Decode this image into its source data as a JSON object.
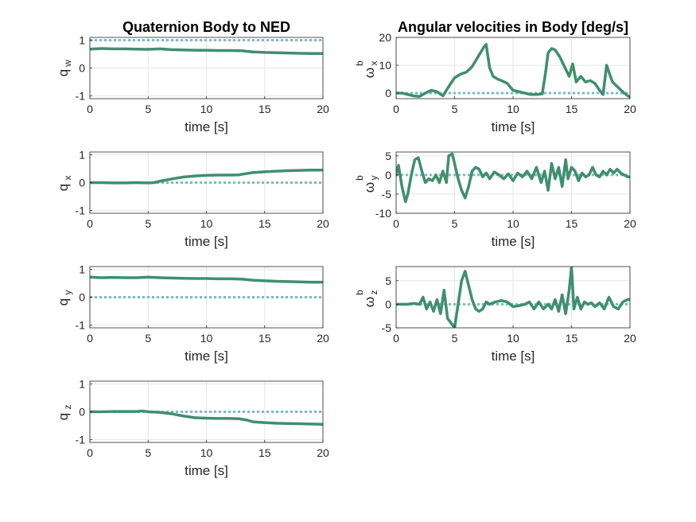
{
  "colors": {
    "data": "#3f8f6e",
    "reference": "#7bbcc4"
  },
  "chart_data": [
    {
      "type": "line",
      "title": "Quaternion Body to NED",
      "xlabel": "time [s]",
      "ylabel": "q",
      "ylabel_sub": "w",
      "xlim": [
        0,
        20
      ],
      "ylim": [
        -1.1,
        1.1
      ],
      "xticks": [
        0,
        5,
        10,
        15,
        20
      ],
      "yticks": [
        -1,
        0,
        1
      ],
      "grid": true,
      "series": [
        {
          "role": "reference",
          "x": [
            0,
            20
          ],
          "y": [
            1,
            1
          ]
        },
        {
          "role": "estimate",
          "x": [
            0,
            1,
            2,
            3,
            4,
            5,
            6,
            7,
            8,
            9,
            10,
            11,
            12,
            13,
            14,
            15,
            16,
            17,
            18,
            19,
            20
          ],
          "y": [
            0.68,
            0.7,
            0.69,
            0.69,
            0.68,
            0.67,
            0.69,
            0.66,
            0.65,
            0.64,
            0.64,
            0.63,
            0.63,
            0.62,
            0.58,
            0.56,
            0.55,
            0.54,
            0.53,
            0.52,
            0.52
          ]
        }
      ]
    },
    {
      "type": "line",
      "title": "Angular velocities in Body [deg/s]",
      "xlabel": "time [s]",
      "ylabel": "ω",
      "ylabel_sup": "b",
      "ylabel_sub": "x",
      "xlim": [
        0,
        20
      ],
      "ylim": [
        -2,
        20
      ],
      "xticks": [
        0,
        5,
        10,
        15,
        20
      ],
      "yticks": [
        0,
        10,
        20
      ],
      "grid": true,
      "series": [
        {
          "role": "reference",
          "x": [
            0,
            20
          ],
          "y": [
            0,
            0
          ]
        },
        {
          "role": "estimate",
          "x": [
            0,
            0.5,
            1,
            1.5,
            2,
            2.5,
            3,
            3.5,
            4,
            4.3,
            4.6,
            5,
            5.5,
            6,
            6.5,
            7,
            7.5,
            7.7,
            8,
            8.3,
            8.7,
            9,
            9.5,
            10,
            10.5,
            11,
            11.5,
            12,
            12.5,
            12.8,
            13,
            13.3,
            13.6,
            14,
            14.4,
            14.8,
            15.1,
            15.4,
            15.8,
            16.2,
            16.6,
            17,
            17.4,
            17.7,
            18,
            18.5,
            19,
            19.5,
            20
          ],
          "y": [
            0,
            0,
            -0.5,
            -1,
            -1.2,
            0,
            1,
            0.5,
            -1,
            1,
            3,
            5.5,
            6.8,
            7.5,
            9.5,
            13,
            16.5,
            17.5,
            9,
            6,
            5,
            4.5,
            3.5,
            1,
            0.5,
            0,
            -0.5,
            -0.5,
            -0.3,
            8,
            14.5,
            16,
            15.5,
            13,
            9.5,
            6,
            10.5,
            4,
            6,
            4,
            4.5,
            3.5,
            1,
            -0.5,
            10,
            4,
            2,
            0,
            -1.5
          ]
        }
      ]
    },
    {
      "type": "line",
      "title": "",
      "xlabel": "time [s]",
      "ylabel": "q",
      "ylabel_sub": "x",
      "xlim": [
        0,
        20
      ],
      "ylim": [
        -1.1,
        1.1
      ],
      "xticks": [
        0,
        5,
        10,
        15,
        20
      ],
      "yticks": [
        -1,
        0,
        1
      ],
      "grid": true,
      "series": [
        {
          "role": "reference",
          "x": [
            0,
            20
          ],
          "y": [
            0,
            0
          ]
        },
        {
          "role": "estimate",
          "x": [
            0,
            1,
            2,
            3,
            4,
            5,
            5.5,
            6,
            7,
            8,
            9,
            10,
            11,
            12,
            12.8,
            13.5,
            14,
            15,
            16,
            17,
            18,
            19,
            20
          ],
          "y": [
            0,
            0,
            -0.01,
            -0.01,
            0,
            -0.01,
            0,
            0.05,
            0.13,
            0.2,
            0.24,
            0.26,
            0.27,
            0.27,
            0.28,
            0.33,
            0.36,
            0.39,
            0.41,
            0.43,
            0.44,
            0.45,
            0.45
          ]
        }
      ]
    },
    {
      "type": "line",
      "title": "",
      "xlabel": "time [s]",
      "ylabel": "ω",
      "ylabel_sup": "b",
      "ylabel_sub": "y",
      "xlim": [
        0,
        20
      ],
      "ylim": [
        -10,
        6
      ],
      "xticks": [
        0,
        5,
        10,
        15,
        20
      ],
      "yticks": [
        -10,
        -5,
        0,
        5
      ],
      "grid": true,
      "series": [
        {
          "role": "reference",
          "x": [
            0,
            20
          ],
          "y": [
            0,
            0
          ]
        },
        {
          "role": "estimate",
          "x": [
            0,
            0.2,
            0.5,
            0.8,
            1,
            1.3,
            1.6,
            1.9,
            2.2,
            2.5,
            2.8,
            3.1,
            3.4,
            3.7,
            4,
            4.3,
            4.5,
            4.8,
            5,
            5.3,
            5.6,
            5.9,
            6.2,
            6.5,
            6.8,
            7.1,
            7.4,
            7.7,
            8,
            8.4,
            8.8,
            9.2,
            9.6,
            10,
            10.4,
            10.8,
            11.2,
            11.6,
            12,
            12.4,
            12.7,
            13,
            13.3,
            13.6,
            13.9,
            14.2,
            14.5,
            14.7,
            15,
            15.3,
            15.6,
            15.9,
            16.2,
            16.5,
            16.8,
            17.1,
            17.4,
            17.7,
            18,
            18.3,
            18.6,
            18.9,
            19.2,
            19.5,
            19.8,
            20
          ],
          "y": [
            0,
            2.5,
            -3,
            -7,
            -5,
            0,
            4,
            4.5,
            1,
            -2,
            -1,
            -1.5,
            0,
            -2,
            1,
            -2,
            5,
            5.5,
            3,
            -1,
            -4,
            -6,
            -3,
            1,
            2,
            1.5,
            -0.5,
            0.5,
            -1,
            0.8,
            0,
            -1,
            0.3,
            -1.5,
            0.5,
            -0.5,
            1,
            -1,
            2,
            -2,
            1,
            -4,
            3,
            -1,
            2,
            -3,
            4,
            -1,
            2,
            1,
            -1.5,
            0.5,
            -0.5,
            0,
            2,
            0,
            -0.5,
            1,
            0,
            1.5,
            0.5,
            1.5,
            0.5,
            0,
            -0.5,
            -0.5
          ]
        }
      ]
    },
    {
      "type": "line",
      "title": "",
      "xlabel": "time [s]",
      "ylabel": "q",
      "ylabel_sub": "y",
      "xlim": [
        0,
        20
      ],
      "ylim": [
        -1.1,
        1.1
      ],
      "xticks": [
        0,
        5,
        10,
        15,
        20
      ],
      "yticks": [
        -1,
        0,
        1
      ],
      "grid": true,
      "series": [
        {
          "role": "reference",
          "x": [
            0,
            20
          ],
          "y": [
            0,
            0
          ]
        },
        {
          "role": "estimate",
          "x": [
            0,
            1,
            2,
            3,
            4,
            5,
            6,
            7,
            8,
            9,
            10,
            11,
            12,
            13,
            14,
            15,
            16,
            17,
            18,
            19,
            20
          ],
          "y": [
            0.72,
            0.7,
            0.71,
            0.7,
            0.7,
            0.72,
            0.7,
            0.69,
            0.68,
            0.67,
            0.67,
            0.66,
            0.66,
            0.65,
            0.61,
            0.59,
            0.57,
            0.56,
            0.55,
            0.54,
            0.54
          ]
        }
      ]
    },
    {
      "type": "line",
      "title": "",
      "xlabel": "time [s]",
      "ylabel": "ω",
      "ylabel_sup": "b",
      "ylabel_sub": "z",
      "xlim": [
        0,
        20
      ],
      "ylim": [
        -5,
        8
      ],
      "xticks": [
        0,
        5,
        10,
        15,
        20
      ],
      "yticks": [
        -5,
        0,
        5
      ],
      "grid": true,
      "series": [
        {
          "role": "reference",
          "x": [
            0,
            20
          ],
          "y": [
            0,
            0
          ]
        },
        {
          "role": "estimate",
          "x": [
            0,
            0.5,
            1,
            1.5,
            2,
            2.3,
            2.6,
            2.9,
            3.2,
            3.5,
            3.8,
            4.1,
            4.4,
            4.7,
            5,
            5.3,
            5.6,
            5.9,
            6.2,
            6.5,
            6.8,
            7.1,
            7.4,
            7.7,
            8,
            8.5,
            9,
            9.5,
            10,
            10.5,
            11,
            11.4,
            11.8,
            12.2,
            12.6,
            13,
            13.3,
            13.6,
            13.9,
            14.2,
            14.5,
            14.8,
            15,
            15.2,
            15.5,
            15.8,
            16.1,
            16.4,
            16.7,
            17,
            17.4,
            17.8,
            18.2,
            18.6,
            19,
            19.4,
            19.8,
            20
          ],
          "y": [
            0,
            0,
            0,
            0.2,
            0,
            1.5,
            -1,
            0.5,
            -1.5,
            1,
            -2,
            3,
            -3,
            -4,
            -5,
            0,
            5,
            7,
            4,
            1,
            -1,
            -1.5,
            -1,
            0.5,
            0,
            0.5,
            0.8,
            0.5,
            -0.5,
            -0.3,
            0,
            0.5,
            -1,
            0.5,
            -1,
            0,
            -1,
            1,
            -1.5,
            2,
            -2,
            3,
            8,
            -1,
            1.5,
            -1,
            0.5,
            0,
            0.3,
            -0.5,
            0.3,
            -1,
            1.5,
            -0.5,
            -1,
            0.5,
            1,
            1
          ]
        }
      ]
    },
    {
      "type": "line",
      "title": "",
      "xlabel": "time [s]",
      "ylabel": "q",
      "ylabel_sub": "z",
      "xlim": [
        0,
        20
      ],
      "ylim": [
        -1.1,
        1.1
      ],
      "xticks": [
        0,
        5,
        10,
        15,
        20
      ],
      "yticks": [
        -1,
        0,
        1
      ],
      "grid": true,
      "series": [
        {
          "role": "reference",
          "x": [
            0,
            20
          ],
          "y": [
            0,
            0
          ]
        },
        {
          "role": "estimate",
          "x": [
            0,
            1,
            2,
            3,
            4,
            4.5,
            5,
            6,
            7,
            8,
            9,
            10,
            11,
            12,
            12.8,
            13.5,
            14,
            15,
            16,
            17,
            18,
            19,
            20
          ],
          "y": [
            0,
            0,
            0.01,
            0.01,
            0.01,
            0.03,
            0,
            -0.02,
            -0.07,
            -0.15,
            -0.21,
            -0.23,
            -0.24,
            -0.24,
            -0.25,
            -0.3,
            -0.36,
            -0.39,
            -0.41,
            -0.42,
            -0.43,
            -0.44,
            -0.45
          ]
        }
      ]
    }
  ]
}
